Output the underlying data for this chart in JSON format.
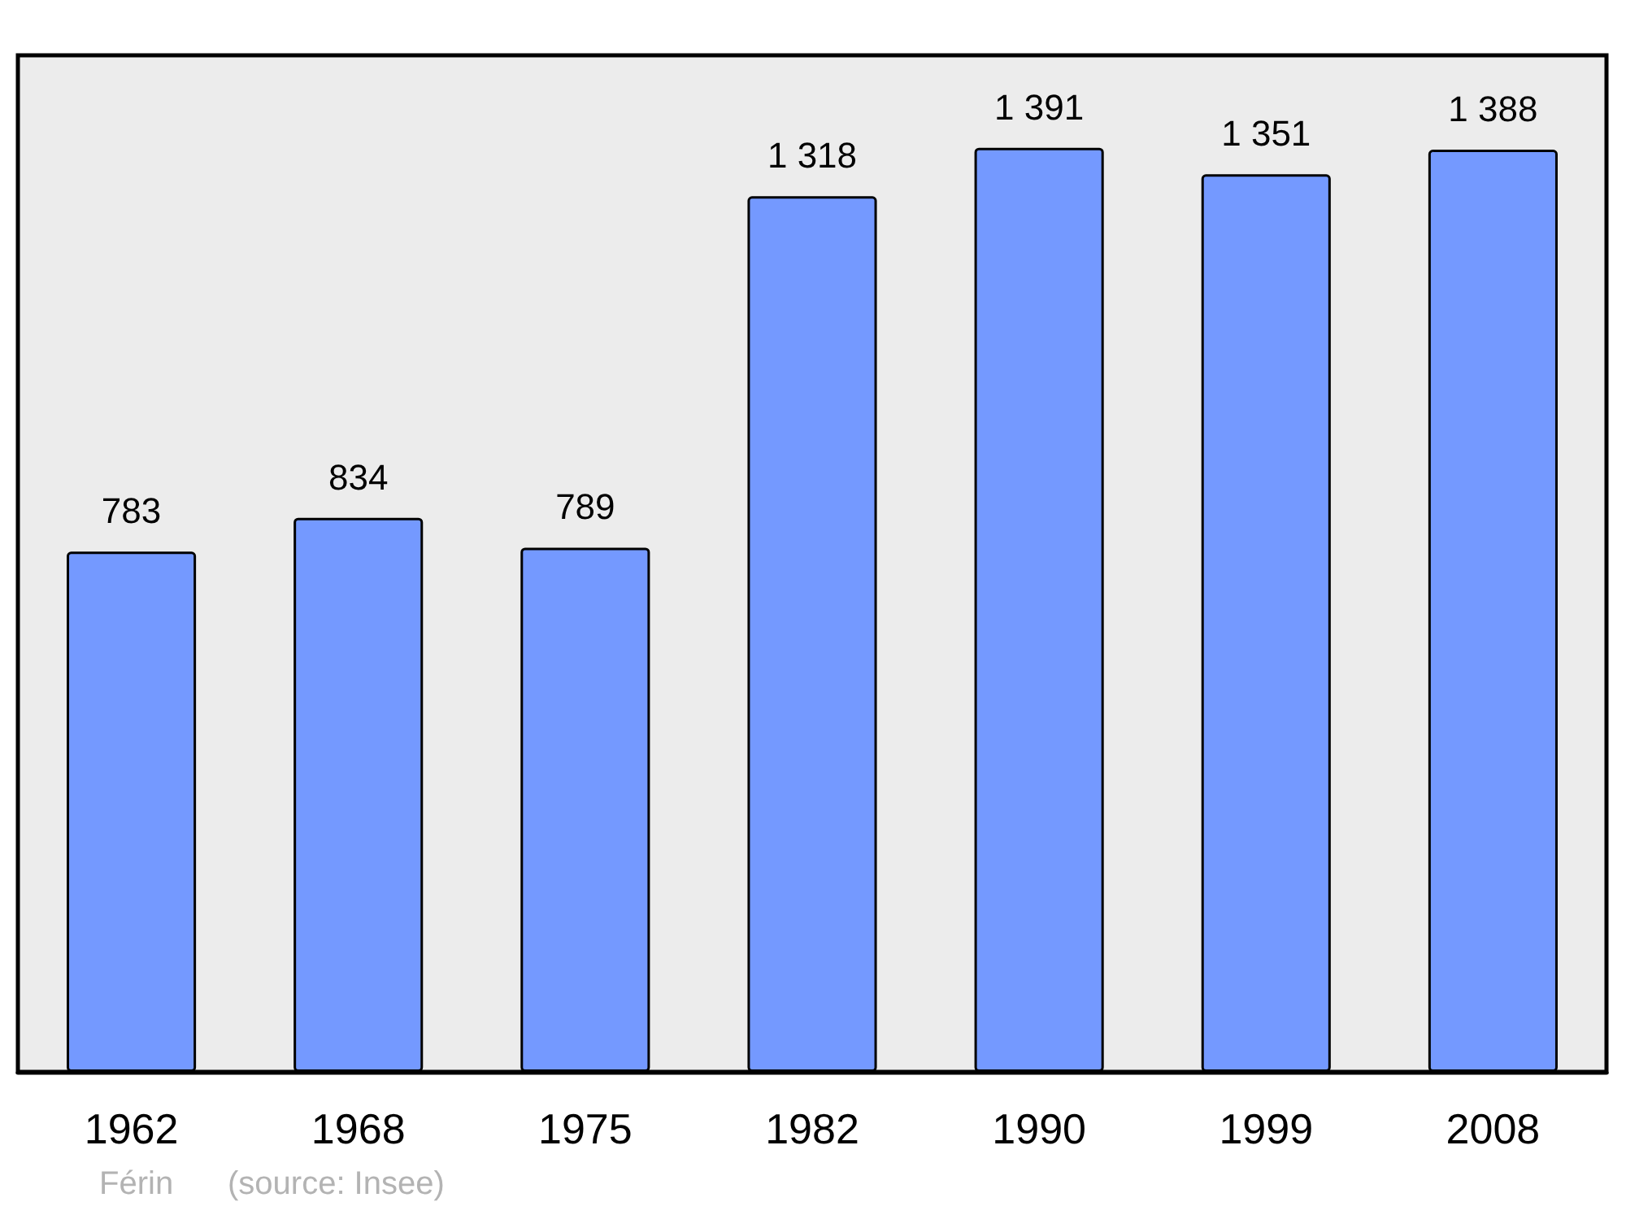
{
  "chart_data": {
    "type": "bar",
    "categories": [
      "1962",
      "1968",
      "1975",
      "1982",
      "1990",
      "1999",
      "2008"
    ],
    "values": [
      783,
      834,
      789,
      1318,
      1391,
      1351,
      1388
    ],
    "value_labels": [
      "783",
      "834",
      "789",
      "1 318",
      "1 391",
      "1 351",
      "1 388"
    ],
    "color": "#7499ff",
    "annotations": [
      "Férin",
      "(source: Insee)"
    ]
  }
}
